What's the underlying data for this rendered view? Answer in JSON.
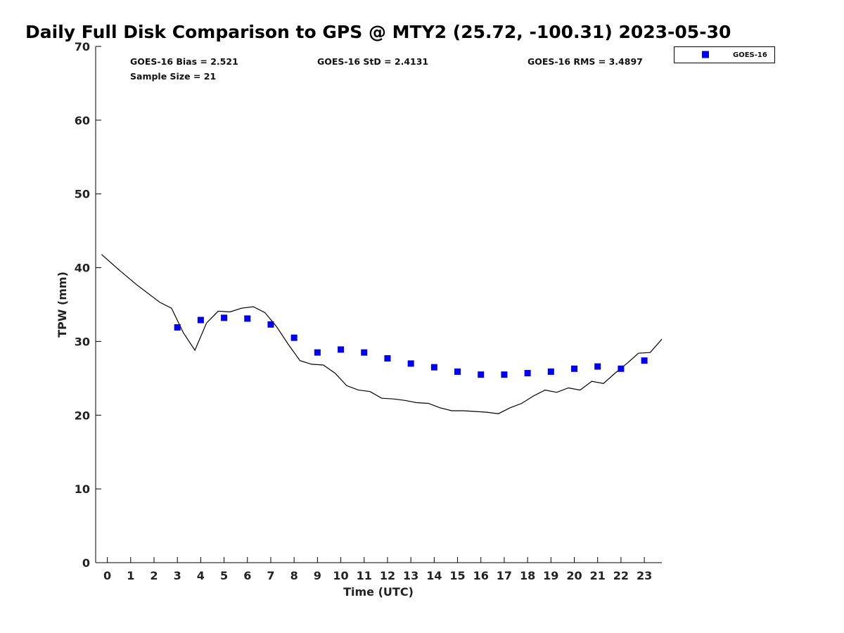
{
  "chart_data": {
    "type": "line",
    "title": "Daily Full Disk Comparison to GPS @ MTY2 (25.72, -100.31) 2023-05-30",
    "xlabel": "Time (UTC)",
    "ylabel": "TPW (mm)",
    "xlim": [
      -0.5,
      23.75
    ],
    "ylim": [
      0,
      70
    ],
    "xticks": [
      0,
      1,
      2,
      3,
      4,
      5,
      6,
      7,
      8,
      9,
      10,
      11,
      12,
      13,
      14,
      15,
      16,
      17,
      18,
      19,
      20,
      21,
      22,
      23
    ],
    "yticks": [
      0,
      10,
      20,
      30,
      40,
      50,
      60,
      70
    ],
    "grid": false,
    "legend": {
      "position": "top-right-outside",
      "entries": [
        "GOES-16"
      ]
    },
    "stats": {
      "bias": "GOES-16 Bias = 2.521",
      "std": "GOES-16 StD = 2.4131",
      "rms": "GOES-16 RMS = 3.4897",
      "sample": "Sample Size = 21"
    },
    "series": [
      {
        "style": "line",
        "color": "#000000",
        "x": [
          -0.25,
          0.5,
          1.25,
          2.25,
          2.75,
          3.25,
          3.75,
          4.25,
          4.75,
          5.25,
          5.75,
          6.25,
          6.75,
          7.25,
          7.75,
          8.25,
          8.75,
          9.25,
          9.75,
          10.25,
          10.75,
          11.25,
          11.75,
          12.25,
          12.75,
          13.25,
          13.75,
          14.25,
          14.75,
          15.25,
          15.75,
          16.25,
          16.75,
          17.25,
          17.75,
          18.25,
          18.75,
          19.25,
          19.75,
          20.25,
          20.75,
          21.25,
          21.75,
          22.25,
          22.75,
          23.25,
          23.75
        ],
        "values": [
          41.8,
          39.7,
          37.7,
          35.3,
          34.5,
          31.2,
          28.8,
          32.5,
          34.1,
          34.0,
          34.5,
          34.7,
          33.9,
          32.0,
          29.6,
          27.4,
          26.9,
          26.8,
          25.7,
          24.0,
          23.4,
          23.2,
          22.3,
          22.2,
          22.0,
          21.7,
          21.6,
          21.0,
          20.6,
          20.6,
          20.5,
          20.4,
          20.2,
          21.0,
          21.6,
          22.6,
          23.4,
          23.1,
          23.7,
          23.4,
          24.6,
          24.3,
          25.7,
          27.0,
          28.4,
          28.5,
          30.3
        ]
      },
      {
        "name": "GOES-16",
        "style": "markers",
        "color": "#0000ee",
        "x": [
          3,
          4,
          5,
          6,
          7,
          8,
          9,
          10,
          11,
          12,
          13,
          14,
          15,
          16,
          17,
          18,
          19,
          20,
          21,
          22,
          23
        ],
        "values": [
          31.9,
          32.9,
          33.2,
          33.1,
          32.3,
          30.5,
          28.5,
          28.9,
          28.5,
          27.7,
          27.0,
          26.5,
          25.9,
          25.5,
          25.5,
          25.7,
          25.9,
          26.3,
          26.6,
          26.3,
          27.4
        ]
      }
    ]
  }
}
